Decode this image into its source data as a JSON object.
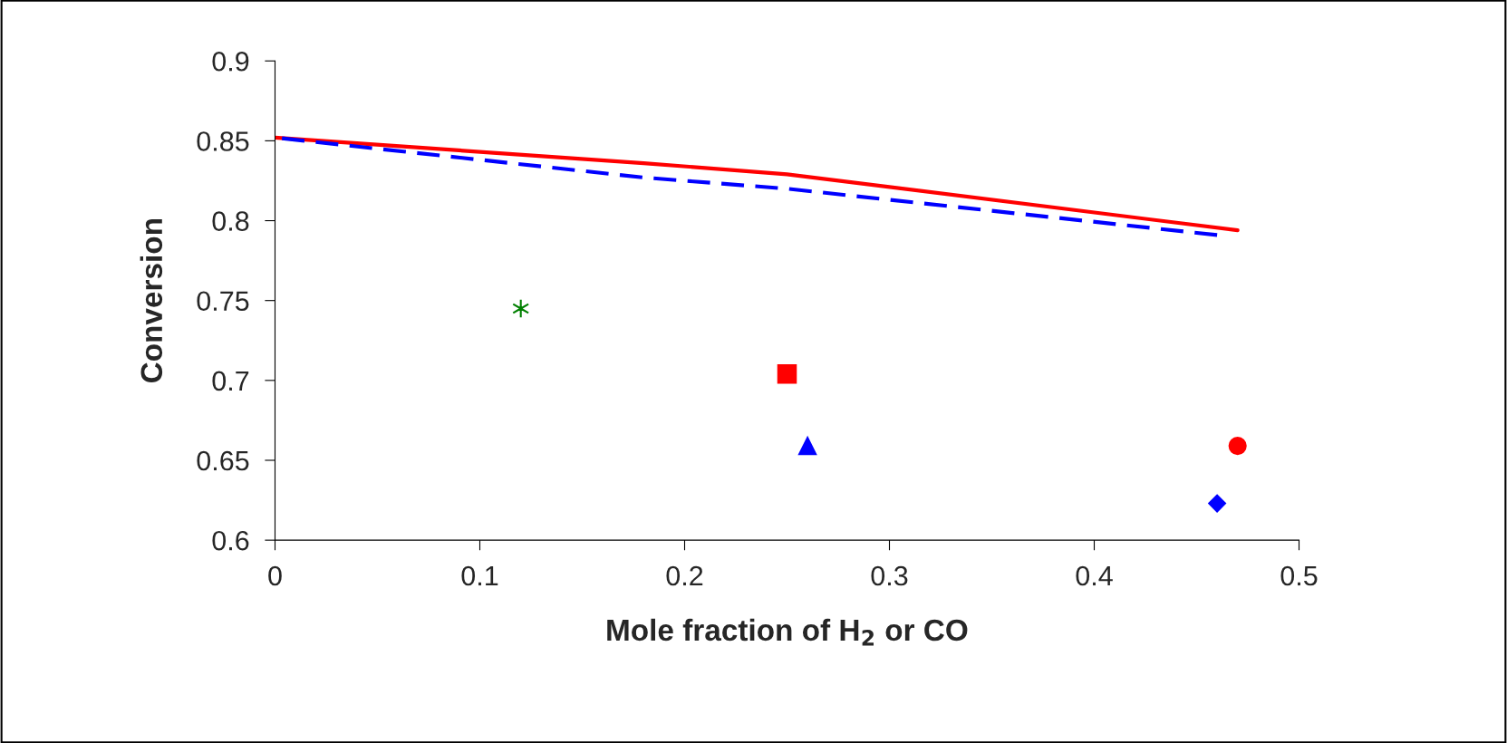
{
  "chart_data": {
    "type": "line",
    "xlabel": "Mole fraction of H$_{2}$ or CO",
    "ylabel": "Conversion",
    "xlim": [
      0,
      0.5
    ],
    "xticks": [
      0,
      0.1,
      0.2,
      0.3,
      0.4,
      0.5
    ],
    "ylim": [
      0.6,
      0.9
    ],
    "yticks": [
      0.6,
      0.65,
      0.7,
      0.75,
      0.8,
      0.85,
      0.9
    ],
    "grid": false,
    "legend": false,
    "series": [
      {
        "color": "#ff0000",
        "line_style": "solid",
        "marker": "none",
        "x": [
          0,
          0.18,
          0.25,
          0.47
        ],
        "values": [
          0.852,
          0.836,
          0.829,
          0.794
        ]
      },
      {
        "color": "#0000ff",
        "line_style": "dashed",
        "marker": "none",
        "x": [
          0,
          0.18,
          0.25,
          0.46
        ],
        "values": [
          0.852,
          0.827,
          0.82,
          0.791
        ]
      },
      {
        "type": "scatter",
        "color": "#008000",
        "marker": "cross",
        "x": [
          0.12
        ],
        "values": [
          0.745
        ]
      },
      {
        "type": "scatter",
        "color": "#ff0000",
        "marker": "square",
        "x": [
          0.25
        ],
        "values": [
          0.704
        ]
      },
      {
        "type": "scatter",
        "color": "#0000ff",
        "marker": "triangle",
        "x": [
          0.26
        ],
        "values": [
          0.659
        ]
      },
      {
        "type": "scatter",
        "color": "#ff0000",
        "marker": "circle",
        "x": [
          0.47
        ],
        "values": [
          0.659
        ]
      },
      {
        "type": "scatter",
        "color": "#0000ff",
        "marker": "diamond",
        "x": [
          0.46
        ],
        "values": [
          0.623
        ]
      }
    ]
  }
}
